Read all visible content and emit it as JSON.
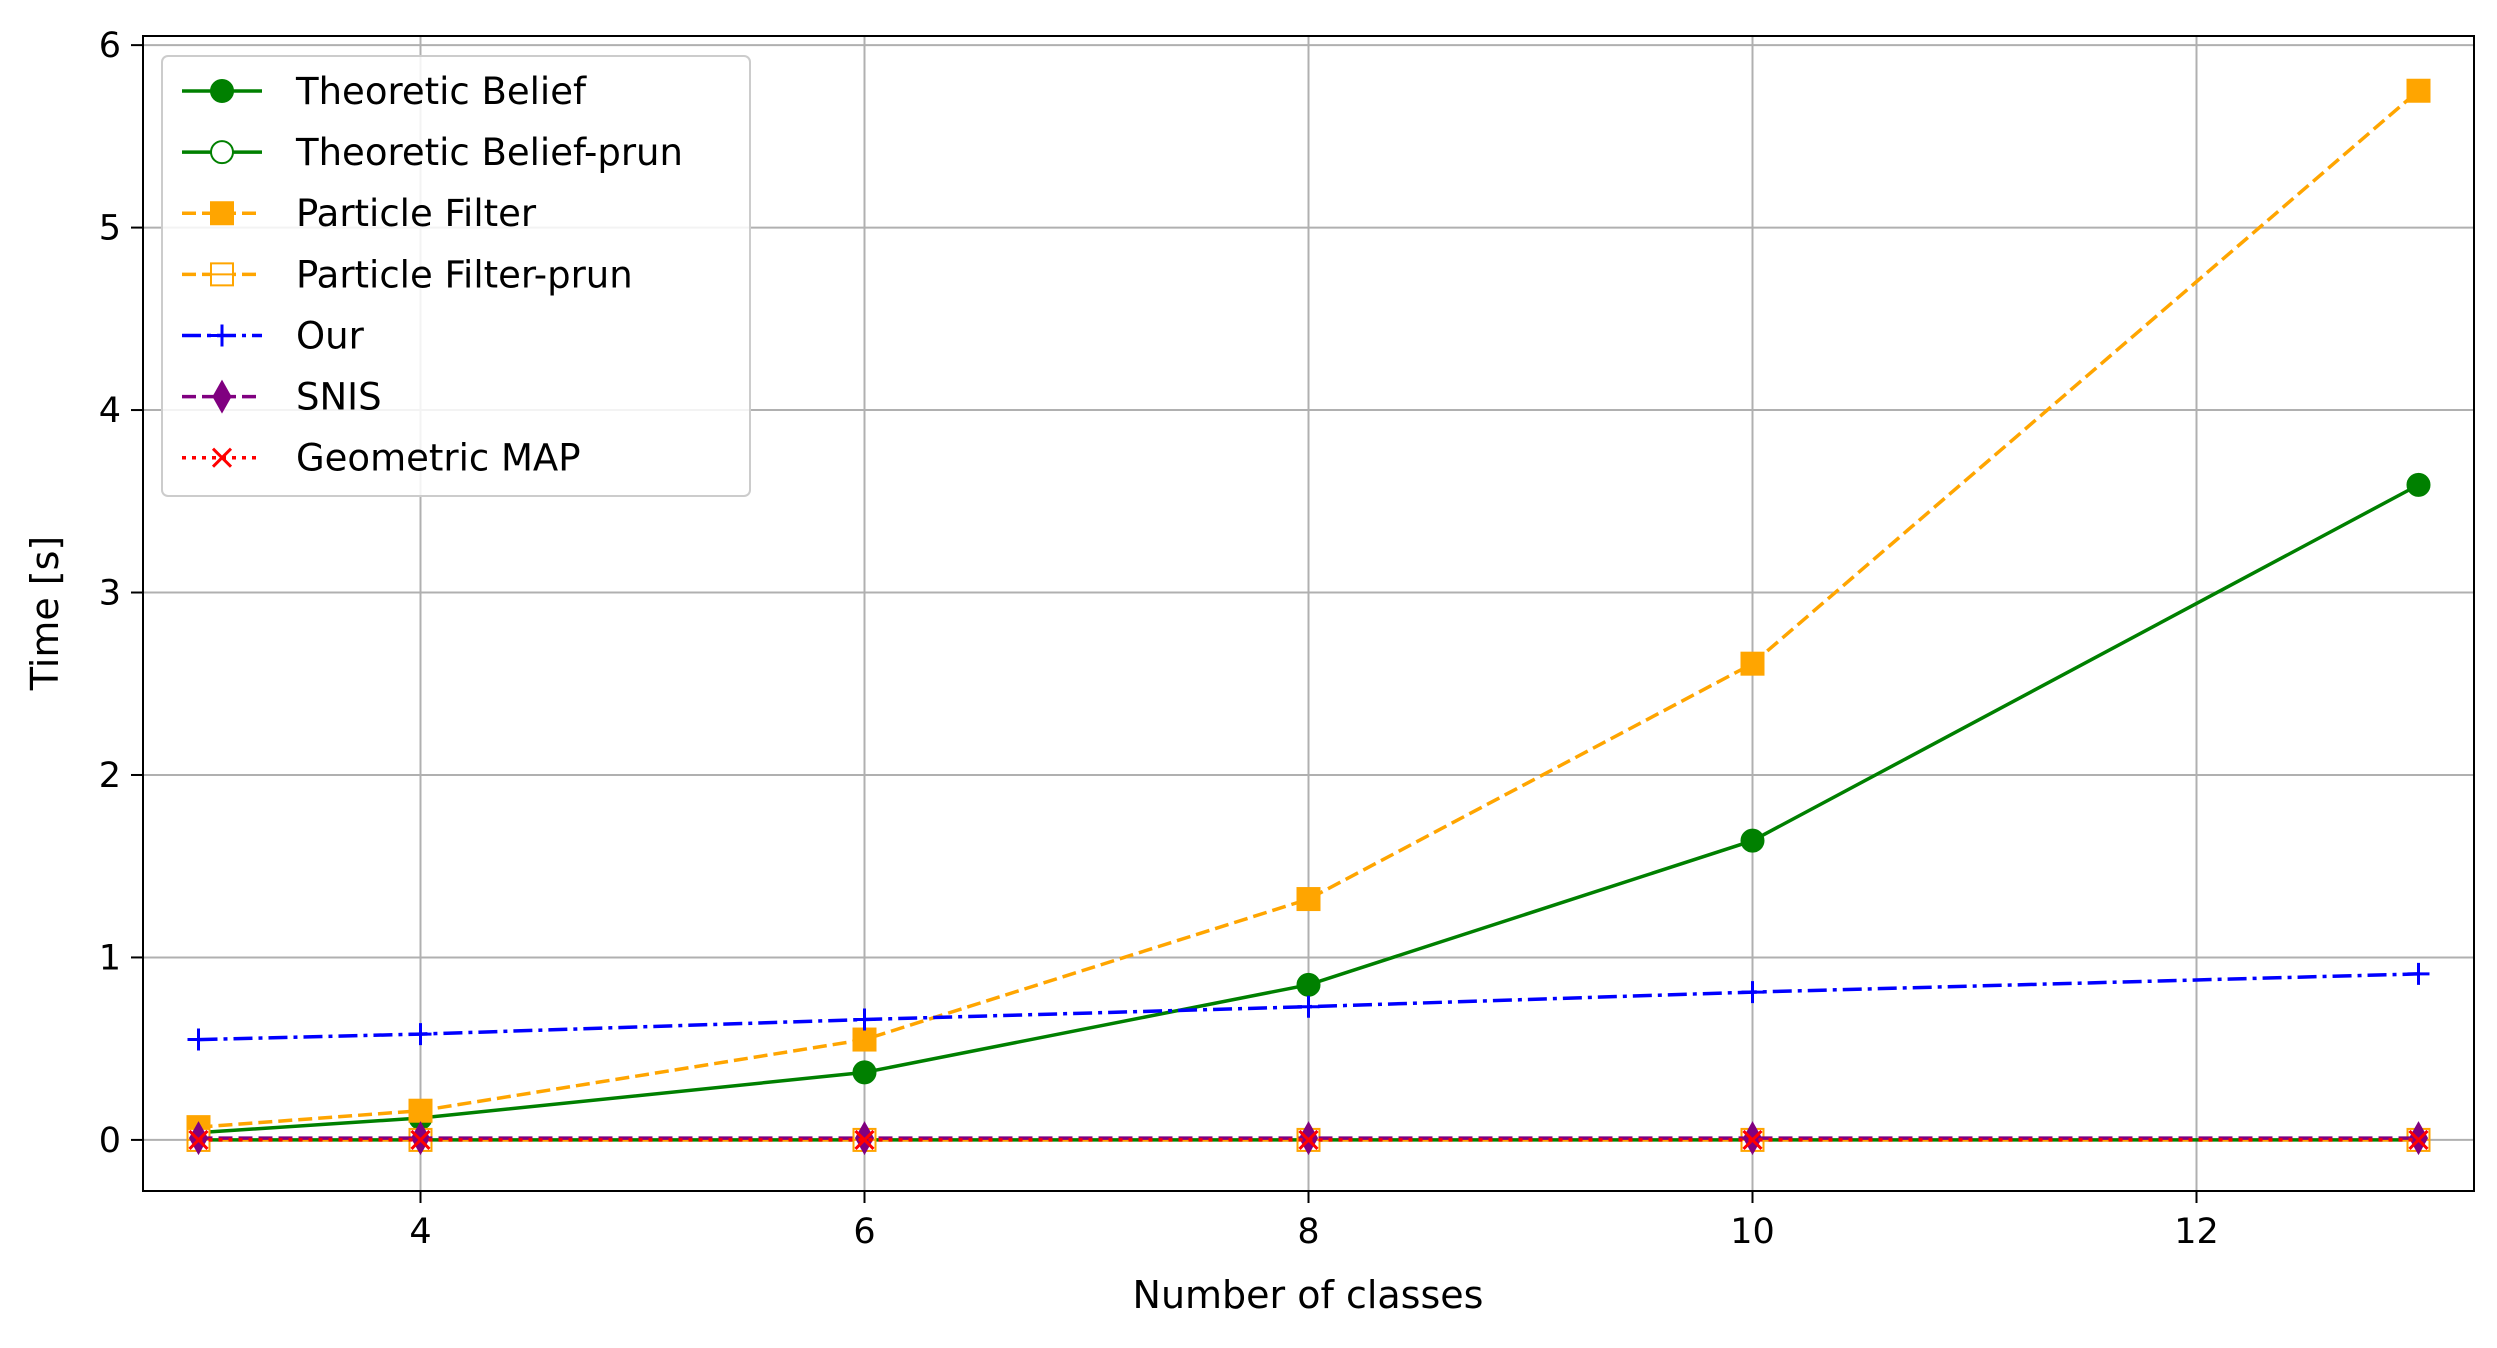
{
  "chart_data": {
    "type": "line",
    "title": "",
    "xlabel": "Number of classes",
    "ylabel": "Time [s]",
    "xlim": [
      2.75,
      13.25
    ],
    "ylim": [
      -0.28,
      6.05
    ],
    "xticks": [
      4,
      6,
      8,
      10,
      12
    ],
    "yticks": [
      0,
      1,
      2,
      3,
      4,
      5,
      6
    ],
    "grid": true,
    "legend_position": "top-left",
    "x": [
      3,
      4,
      6,
      8,
      10,
      13
    ],
    "series": [
      {
        "name": "Theoretic Belief",
        "values": [
          0.04,
          0.12,
          0.37,
          0.85,
          1.64,
          3.59
        ],
        "color": "#008000",
        "linestyle": "solid",
        "marker": "circle-filled"
      },
      {
        "name": "Theoretic Belief-prun",
        "values": [
          0.0,
          0.0,
          0.0,
          0.0,
          0.0,
          0.0
        ],
        "color": "#008000",
        "linestyle": "solid",
        "marker": "circle-open"
      },
      {
        "name": "Particle Filter",
        "values": [
          0.07,
          0.16,
          0.55,
          1.32,
          2.61,
          5.75
        ],
        "color": "#ffa500",
        "linestyle": "dashed",
        "marker": "square-filled"
      },
      {
        "name": "Particle Filter-prun",
        "values": [
          0.0,
          0.0,
          0.0,
          0.0,
          0.0,
          0.0
        ],
        "color": "#ffa500",
        "linestyle": "dashed",
        "marker": "square-open"
      },
      {
        "name": "Our",
        "values": [
          0.55,
          0.58,
          0.66,
          0.73,
          0.81,
          0.91
        ],
        "color": "#0000ff",
        "linestyle": "dashdot",
        "marker": "plus"
      },
      {
        "name": "SNIS",
        "values": [
          0.01,
          0.01,
          0.01,
          0.01,
          0.01,
          0.01
        ],
        "color": "#800080",
        "linestyle": "dashed",
        "marker": "thin-diamond"
      },
      {
        "name": "Geometric MAP",
        "values": [
          0.0,
          0.0,
          0.0,
          0.0,
          0.0,
          0.0
        ],
        "color": "#ff0000",
        "linestyle": "dotted",
        "marker": "x"
      }
    ]
  }
}
